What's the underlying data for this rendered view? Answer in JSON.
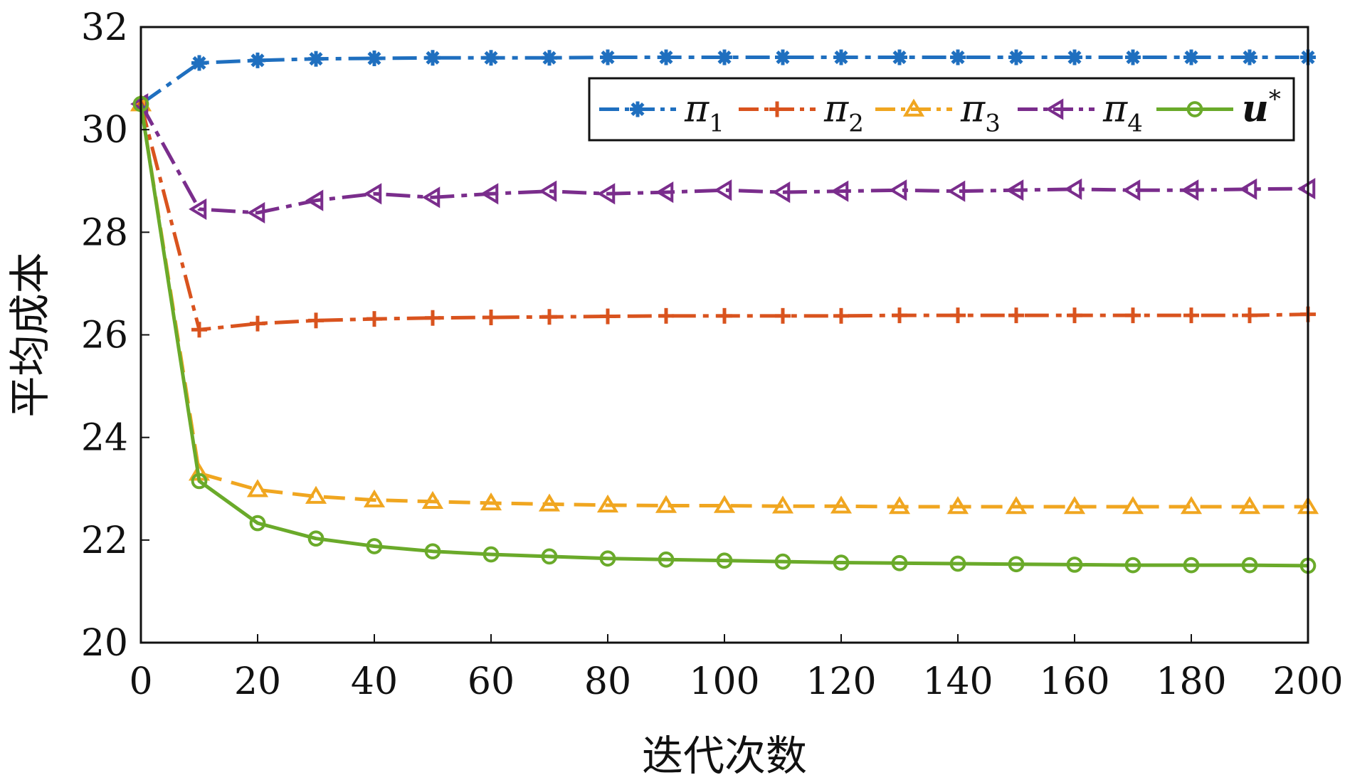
{
  "chart_data": {
    "type": "line",
    "xlabel": "迭代次数",
    "ylabel": "平均成本",
    "xlim": [
      0,
      200
    ],
    "ylim": [
      20,
      32
    ],
    "x_ticks": [
      "0",
      "20",
      "40",
      "60",
      "80",
      "100",
      "120",
      "140",
      "160",
      "180",
      "200"
    ],
    "y_ticks": [
      "20",
      "22",
      "24",
      "26",
      "28",
      "30",
      "32"
    ],
    "legend_position": "top-right",
    "x": [
      0,
      10,
      20,
      30,
      40,
      50,
      60,
      70,
      80,
      90,
      100,
      110,
      120,
      130,
      140,
      150,
      160,
      170,
      180,
      190,
      200
    ],
    "series": [
      {
        "name": "π1",
        "base": "π",
        "sub": "1",
        "color": "#1f6fbf",
        "marker": "asterisk",
        "dash": "dashdot",
        "values": [
          30.5,
          31.3,
          31.35,
          31.38,
          31.39,
          31.4,
          31.4,
          31.4,
          31.41,
          31.41,
          31.41,
          31.41,
          31.41,
          31.41,
          31.41,
          31.41,
          31.41,
          31.41,
          31.41,
          31.41,
          31.41
        ]
      },
      {
        "name": "π2",
        "base": "π",
        "sub": "2",
        "color": "#d9531e",
        "marker": "plus",
        "dash": "dashdot",
        "values": [
          30.5,
          26.1,
          26.22,
          26.28,
          26.31,
          26.33,
          26.34,
          26.35,
          26.36,
          26.37,
          26.37,
          26.37,
          26.37,
          26.38,
          26.38,
          26.38,
          26.38,
          26.38,
          26.38,
          26.38,
          26.4
        ]
      },
      {
        "name": "π3",
        "base": "π",
        "sub": "3",
        "color": "#f0a620",
        "marker": "triangle-up",
        "dash": "dashed",
        "values": [
          30.5,
          23.3,
          22.98,
          22.85,
          22.78,
          22.75,
          22.72,
          22.7,
          22.68,
          22.67,
          22.67,
          22.66,
          22.66,
          22.65,
          22.65,
          22.65,
          22.65,
          22.65,
          22.65,
          22.65,
          22.65
        ]
      },
      {
        "name": "π4",
        "base": "π",
        "sub": "4",
        "color": "#7a2d8c",
        "marker": "triangle-left",
        "dash": "dashdot",
        "values": [
          30.5,
          28.45,
          28.38,
          28.62,
          28.75,
          28.68,
          28.75,
          28.8,
          28.75,
          28.78,
          28.82,
          28.78,
          28.8,
          28.82,
          28.8,
          28.82,
          28.84,
          28.82,
          28.82,
          28.84,
          28.85
        ]
      },
      {
        "name": "u*",
        "base": "u",
        "sub": "*",
        "color": "#6aaa2a",
        "marker": "circle",
        "dash": "solid",
        "values": [
          30.5,
          23.15,
          22.33,
          22.03,
          21.88,
          21.78,
          21.72,
          21.68,
          21.64,
          21.62,
          21.6,
          21.58,
          21.56,
          21.55,
          21.54,
          21.53,
          21.52,
          21.51,
          21.51,
          21.51,
          21.5
        ]
      }
    ]
  }
}
